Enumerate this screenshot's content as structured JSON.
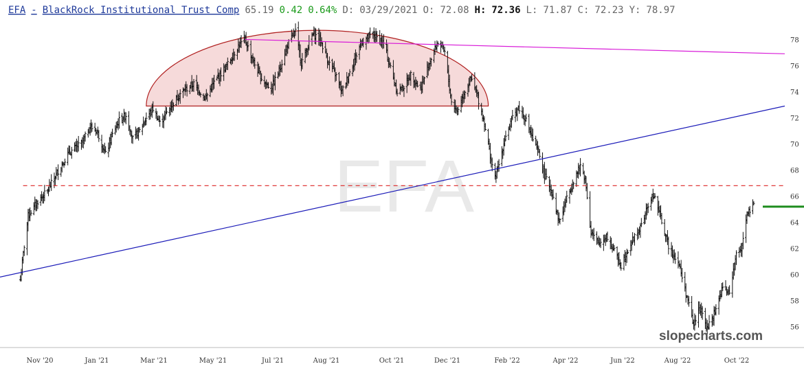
{
  "header": {
    "symbol": "EFA",
    "separator": "-",
    "company": "BlackRock Institutional Trust Comp",
    "price": "65.19",
    "change": "0.42",
    "change_pct": "0.64%",
    "date_label": "D:",
    "date": "03/29/2021",
    "open_label": "O:",
    "open": "72.08",
    "high_label": "H:",
    "high": "72.36",
    "low_label": "L:",
    "low": "71.87",
    "close_label": "C:",
    "close": "72.23",
    "y_label": "Y:",
    "y_value": "78.97"
  },
  "watermark": "EFA",
  "brand": "slopecharts.com",
  "colors": {
    "bars": "#111111",
    "blue_trendline": "#1a1ab8",
    "magenta_trendline": "#d81ad8",
    "dashed_level": "#dd2222",
    "dome_fill": "#f6dada",
    "dome_stroke": "#b02020",
    "price_marker": "#1c8c1c",
    "header_link": "#1f3a9a",
    "header_green": "#1a9a1a"
  },
  "chart_data": {
    "type": "ohlc",
    "x_ticks": [
      "Nov '20",
      "Jan '21",
      "Mar '21",
      "May '21",
      "Jul '21",
      "Aug '21",
      "Oct '21",
      "Dec '21",
      "Feb '22",
      "Apr '22",
      "Jun '22",
      "Aug '22",
      "Oct '22"
    ],
    "y_ticks": [
      56,
      58,
      60,
      62,
      64,
      66,
      68,
      70,
      72,
      74,
      76,
      78
    ],
    "ylim": [
      54.4,
      79.6
    ],
    "xlim": [
      "2020-10-12",
      "2022-12-31"
    ],
    "close_path": [
      [
        "2020-11-02",
        59.6
      ],
      [
        "2020-11-06",
        62.2
      ],
      [
        "2020-11-10",
        64.5
      ],
      [
        "2020-11-20",
        65.6
      ],
      [
        "2020-11-30",
        66.4
      ],
      [
        "2020-12-10",
        67.8
      ],
      [
        "2020-12-22",
        69.3
      ],
      [
        "2021-01-05",
        70.1
      ],
      [
        "2021-01-13",
        71.3
      ],
      [
        "2021-01-20",
        71.0
      ],
      [
        "2021-01-29",
        69.2
      ],
      [
        "2021-02-05",
        70.7
      ],
      [
        "2021-02-12",
        71.8
      ],
      [
        "2021-02-19",
        72.2
      ],
      [
        "2021-02-26",
        70.4
      ],
      [
        "2021-03-05",
        71.0
      ],
      [
        "2021-03-12",
        72.0
      ],
      [
        "2021-03-19",
        72.7
      ],
      [
        "2021-03-26",
        71.6
      ],
      [
        "2021-04-02",
        72.4
      ],
      [
        "2021-04-15",
        73.8
      ],
      [
        "2021-04-30",
        74.6
      ],
      [
        "2021-05-12",
        73.5
      ],
      [
        "2021-05-21",
        74.7
      ],
      [
        "2021-06-04",
        76.1
      ],
      [
        "2021-06-15",
        77.5
      ],
      [
        "2021-06-22",
        78.0
      ],
      [
        "2021-06-30",
        76.4
      ],
      [
        "2021-07-08",
        75.1
      ],
      [
        "2021-07-19",
        74.2
      ],
      [
        "2021-07-28",
        75.8
      ],
      [
        "2021-08-05",
        77.6
      ],
      [
        "2021-08-13",
        78.6
      ],
      [
        "2021-08-19",
        76.2
      ],
      [
        "2021-08-31",
        78.4
      ],
      [
        "2021-09-07",
        78.1
      ],
      [
        "2021-09-16",
        76.3
      ],
      [
        "2021-09-24",
        75.2
      ],
      [
        "2021-09-30",
        74.0
      ],
      [
        "2021-10-08",
        75.5
      ],
      [
        "2021-10-20",
        77.8
      ],
      [
        "2021-11-01",
        78.4
      ],
      [
        "2021-11-12",
        77.7
      ],
      [
        "2021-11-26",
        74.0
      ],
      [
        "2021-12-03",
        74.4
      ],
      [
        "2021-12-10",
        75.3
      ],
      [
        "2021-12-20",
        74.2
      ],
      [
        "2021-12-30",
        76.4
      ],
      [
        "2022-01-07",
        77.8
      ],
      [
        "2022-01-14",
        77.0
      ],
      [
        "2022-01-21",
        73.2
      ],
      [
        "2022-01-27",
        72.5
      ],
      [
        "2022-02-04",
        74.1
      ],
      [
        "2022-02-10",
        75.0
      ],
      [
        "2022-02-17",
        73.6
      ],
      [
        "2022-02-24",
        71.6
      ],
      [
        "2022-03-01",
        69.5
      ],
      [
        "2022-03-07",
        67.3
      ],
      [
        "2022-03-11",
        68.4
      ],
      [
        "2022-03-17",
        70.4
      ],
      [
        "2022-03-24",
        71.8
      ],
      [
        "2022-03-31",
        72.8
      ],
      [
        "2022-04-07",
        72.0
      ],
      [
        "2022-04-14",
        70.5
      ],
      [
        "2022-04-22",
        69.1
      ],
      [
        "2022-04-27",
        67.6
      ],
      [
        "2022-05-05",
        66.3
      ],
      [
        "2022-05-12",
        64.0
      ],
      [
        "2022-05-19",
        65.6
      ],
      [
        "2022-05-27",
        67.2
      ],
      [
        "2022-06-03",
        68.3
      ],
      [
        "2022-06-08",
        67.4
      ],
      [
        "2022-06-14",
        63.2
      ],
      [
        "2022-06-22",
        62.3
      ],
      [
        "2022-06-30",
        63.0
      ],
      [
        "2022-07-08",
        61.8
      ],
      [
        "2022-07-15",
        60.7
      ],
      [
        "2022-07-22",
        61.9
      ],
      [
        "2022-07-29",
        62.9
      ],
      [
        "2022-08-05",
        63.7
      ],
      [
        "2022-08-12",
        65.3
      ],
      [
        "2022-08-18",
        66.1
      ],
      [
        "2022-08-26",
        64.1
      ],
      [
        "2022-09-02",
        62.2
      ],
      [
        "2022-09-12",
        61.0
      ],
      [
        "2022-09-20",
        58.6
      ],
      [
        "2022-09-28",
        56.1
      ],
      [
        "2022-10-04",
        57.6
      ],
      [
        "2022-10-12",
        55.8
      ],
      [
        "2022-10-20",
        57.2
      ],
      [
        "2022-10-28",
        59.0
      ],
      [
        "2022-11-04",
        58.5
      ],
      [
        "2022-11-10",
        61.3
      ],
      [
        "2022-11-16",
        62.0
      ],
      [
        "2022-11-22",
        64.6
      ],
      [
        "2022-11-29",
        65.2
      ]
    ],
    "last_price": 65.19,
    "annotations": {
      "horizontal_dashed_level": 66.8,
      "blue_trendline": [
        [
          "2020-10-12",
          59.8
        ],
        [
          "2022-12-31",
          72.9
        ]
      ],
      "magenta_trendline": [
        [
          "2021-06-22",
          78.0
        ],
        [
          "2022-12-31",
          76.9
        ]
      ],
      "rounded_top": {
        "start": "2021-03-12",
        "end": "2022-02-28",
        "base": 72.9,
        "peak": 78.7
      }
    }
  }
}
